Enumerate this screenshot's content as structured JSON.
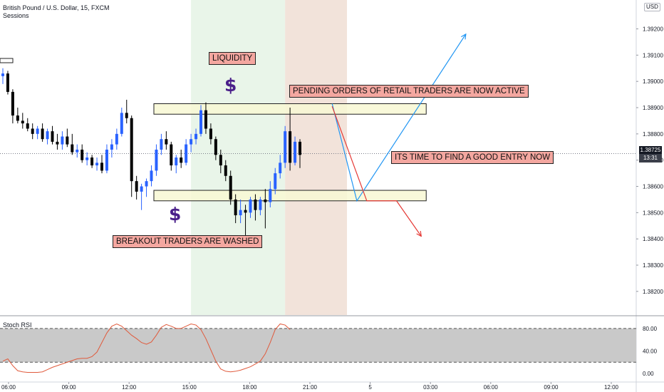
{
  "header": {
    "symbol": "British Pound / U.S. Dollar, 15, FXCM",
    "indicator": "Sessions"
  },
  "currency_badge": "USD",
  "last_price": {
    "value": "1.38725",
    "countdown": "13:31"
  },
  "annotations": {
    "liquidity": "LIQUIDITY",
    "pending": "PENDING ORDERS OF RETAIL TRADERS ARE NOW ACTIVE",
    "entry": "ITS TIME TO FIND A GOOD ENTRY NOW",
    "washed": "BREAKOUT TRADERS ARE WASHED",
    "dollar_symbol": "$"
  },
  "rsi_panel": {
    "title": "Stoch RSI"
  },
  "colors": {
    "bull": "#2962ff",
    "bear": "#000000",
    "session_green": "#e9f5e9",
    "session_red": "#f2e3da",
    "zone_fill": "#f8f8d4",
    "blue_path": "#2196f3",
    "red_path": "#e53935",
    "rsi_line": "#e05a3c",
    "annotation_bg": "#f4a7a0"
  },
  "chart_data": {
    "type": "candlestick",
    "symbol": "GBPUSD",
    "timeframe": "15",
    "price_axis": {
      "range": [
        1.3811,
        1.3931
      ],
      "ticks": [
        "1.38200",
        "1.38300",
        "1.38400",
        "1.38500",
        "1.38600",
        "1.38700",
        "1.38800",
        "1.38900",
        "1.39000",
        "1.39100",
        "1.39200"
      ]
    },
    "time_axis": {
      "ticks": [
        "06:00",
        "09:00",
        "12:00",
        "15:00",
        "18:00",
        "21:00",
        "5",
        "03:00",
        "06:00",
        "09:00",
        "12:00"
      ]
    },
    "rsi_axis": {
      "range": [
        -10,
        100
      ],
      "ticks": [
        "80.00",
        "40.00",
        "0.00"
      ],
      "band": [
        20,
        80
      ]
    },
    "sessions": [
      {
        "name": "session-1",
        "start": 38,
        "end": 57
      },
      {
        "name": "session-2",
        "start": 57,
        "end": 69.5
      }
    ],
    "zones": [
      {
        "name": "upper-zone",
        "from_index": 30.5,
        "to_index": 85.5,
        "low": 1.38875,
        "high": 1.38915
      },
      {
        "name": "lower-zone",
        "from_index": 30.5,
        "to_index": 85.5,
        "low": 1.38545,
        "high": 1.38585
      }
    ],
    "projections": [
      {
        "name": "blue-path",
        "points": [
          [
            66.5,
            1.38915
          ],
          [
            71.5,
            1.38545
          ],
          [
            93.5,
            1.3918
          ]
        ]
      },
      {
        "name": "red-path",
        "points": [
          [
            66.5,
            1.38905
          ],
          [
            73.5,
            1.38545
          ],
          [
            79.5,
            1.38545
          ],
          [
            84.5,
            1.3841
          ]
        ]
      }
    ],
    "candles": [
      [
        1.3902,
        1.3905,
        1.3899,
        1.3903
      ],
      [
        1.3903,
        1.3904,
        1.3895,
        1.3896
      ],
      [
        1.3896,
        1.3897,
        1.3884,
        1.3887
      ],
      [
        1.3887,
        1.389,
        1.3884,
        1.3885
      ],
      [
        1.3885,
        1.3888,
        1.3882,
        1.3884
      ],
      [
        1.3884,
        1.3886,
        1.3881,
        1.3882
      ],
      [
        1.3882,
        1.3884,
        1.3878,
        1.388
      ],
      [
        1.388,
        1.3883,
        1.3878,
        1.3882
      ],
      [
        1.3882,
        1.3884,
        1.3877,
        1.3878
      ],
      [
        1.3878,
        1.3882,
        1.3876,
        1.3881
      ],
      [
        1.3881,
        1.3883,
        1.3876,
        1.3877
      ],
      [
        1.3877,
        1.388,
        1.3874,
        1.3876
      ],
      [
        1.3876,
        1.3881,
        1.3874,
        1.3879
      ],
      [
        1.3879,
        1.3882,
        1.3875,
        1.3876
      ],
      [
        1.3876,
        1.388,
        1.3872,
        1.3873
      ],
      [
        1.3873,
        1.3876,
        1.3871,
        1.3874
      ],
      [
        1.3874,
        1.3876,
        1.3869,
        1.387
      ],
      [
        1.387,
        1.3873,
        1.3868,
        1.3871
      ],
      [
        1.3871,
        1.3872,
        1.3867,
        1.3868
      ],
      [
        1.3868,
        1.3871,
        1.3866,
        1.3869
      ],
      [
        1.3869,
        1.3872,
        1.3865,
        1.3866
      ],
      [
        1.3866,
        1.3876,
        1.3865,
        1.3874
      ],
      [
        1.3874,
        1.3878,
        1.3871,
        1.3876
      ],
      [
        1.3876,
        1.3882,
        1.3874,
        1.388
      ],
      [
        1.388,
        1.389,
        1.3879,
        1.3888
      ],
      [
        1.3888,
        1.3893,
        1.3884,
        1.3886
      ],
      [
        1.3886,
        1.3887,
        1.3856,
        1.3862
      ],
      [
        1.3862,
        1.3864,
        1.3855,
        1.3858
      ],
      [
        1.3858,
        1.3861,
        1.3851,
        1.386
      ],
      [
        1.386,
        1.3863,
        1.3856,
        1.3862
      ],
      [
        1.3862,
        1.3868,
        1.386,
        1.3866
      ],
      [
        1.3866,
        1.3876,
        1.3864,
        1.3874
      ],
      [
        1.3874,
        1.388,
        1.3872,
        1.3878
      ],
      [
        1.3878,
        1.3881,
        1.3874,
        1.3876
      ],
      [
        1.3876,
        1.3877,
        1.3866,
        1.3868
      ],
      [
        1.3868,
        1.3872,
        1.3865,
        1.3871
      ],
      [
        1.3871,
        1.3874,
        1.3867,
        1.3869
      ],
      [
        1.3869,
        1.3878,
        1.3868,
        1.3876
      ],
      [
        1.3876,
        1.388,
        1.3873,
        1.3878
      ],
      [
        1.3878,
        1.3882,
        1.3876,
        1.388
      ],
      [
        1.388,
        1.3891,
        1.3879,
        1.3889
      ],
      [
        1.3889,
        1.3892,
        1.388,
        1.3882
      ],
      [
        1.3882,
        1.3884,
        1.3876,
        1.3878
      ],
      [
        1.3878,
        1.3879,
        1.387,
        1.3872
      ],
      [
        1.3872,
        1.3874,
        1.3865,
        1.3868
      ],
      [
        1.3868,
        1.387,
        1.3862,
        1.3864
      ],
      [
        1.3864,
        1.3866,
        1.3853,
        1.3855
      ],
      [
        1.3855,
        1.3857,
        1.3846,
        1.3849
      ],
      [
        1.3849,
        1.3855,
        1.3846,
        1.3851
      ],
      [
        1.3851,
        1.3853,
        1.384,
        1.385
      ],
      [
        1.385,
        1.3856,
        1.3848,
        1.3855
      ],
      [
        1.3855,
        1.3857,
        1.3847,
        1.3851
      ],
      [
        1.3851,
        1.3856,
        1.3849,
        1.3855
      ],
      [
        1.3855,
        1.3859,
        1.3844,
        1.3854
      ],
      [
        1.3854,
        1.3862,
        1.3852,
        1.3859
      ],
      [
        1.3859,
        1.3867,
        1.3857,
        1.3865
      ],
      [
        1.3865,
        1.3872,
        1.3863,
        1.3869
      ],
      [
        1.3869,
        1.3883,
        1.3867,
        1.3881
      ],
      [
        1.3881,
        1.389,
        1.3866,
        1.3869
      ],
      [
        1.3869,
        1.3879,
        1.3868,
        1.3877
      ],
      [
        1.3877,
        1.3878,
        1.3867,
        1.3872
      ]
    ],
    "rsi_values": [
      22,
      26,
      14,
      5,
      3,
      2,
      2,
      2,
      3,
      7,
      11,
      14,
      17,
      20,
      23,
      26,
      27,
      27,
      30,
      38,
      55,
      72,
      84,
      88,
      84,
      76,
      68,
      62,
      55,
      52,
      56,
      68,
      82,
      87,
      84,
      80,
      80,
      84,
      88,
      86,
      78,
      62,
      42,
      22,
      8,
      4,
      3,
      4,
      6,
      9,
      12,
      17,
      22,
      35,
      55,
      78,
      88,
      86,
      78
    ]
  }
}
